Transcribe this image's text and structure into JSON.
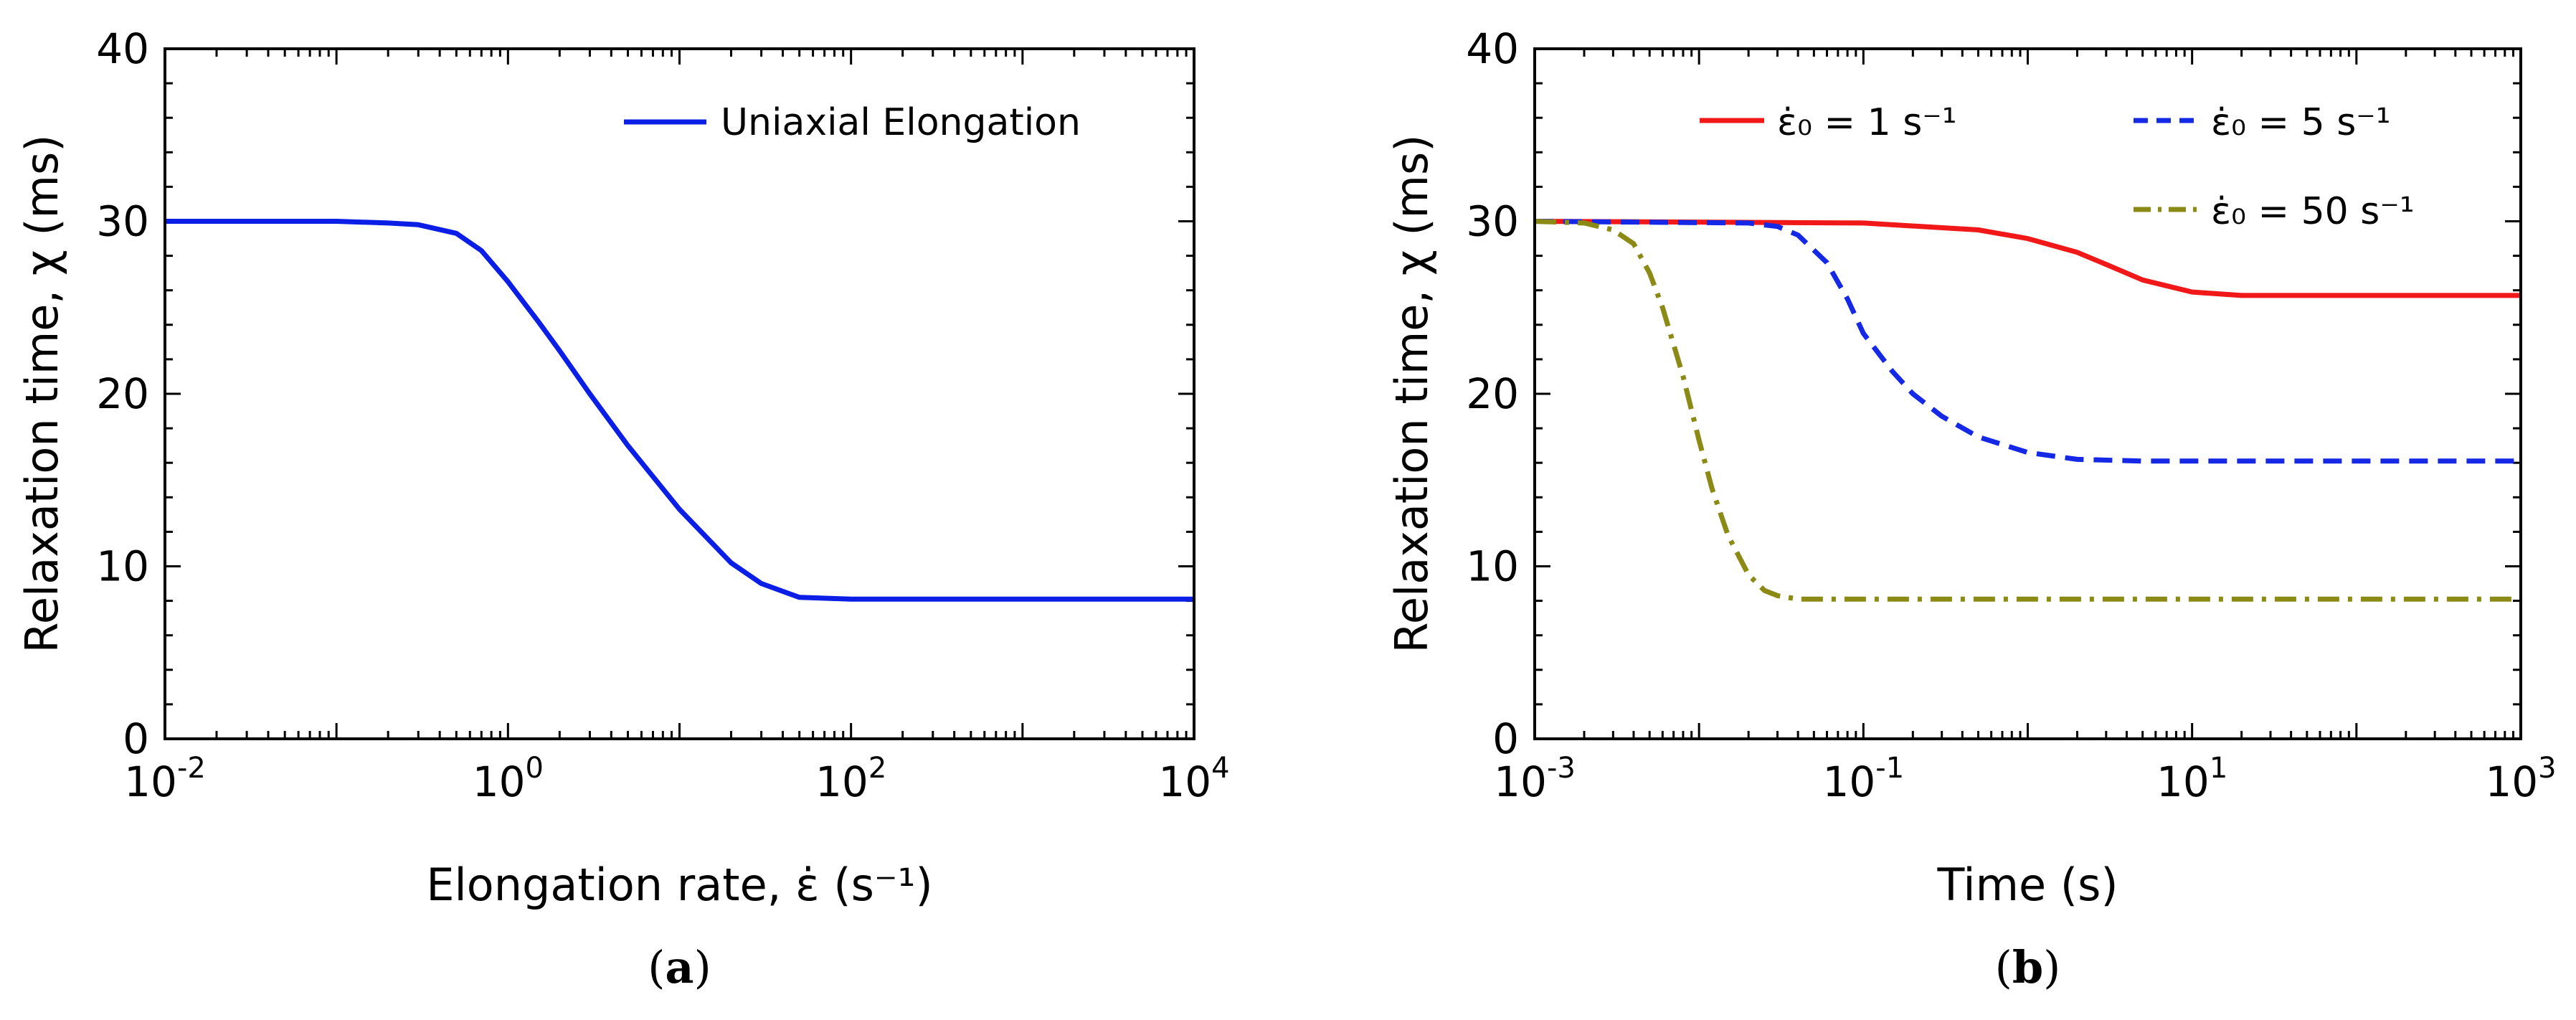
{
  "chart_data": [
    {
      "type": "line",
      "panel": "(a)",
      "panel_letter": "a",
      "xscale": "log",
      "xlim": [
        0.01,
        10000
      ],
      "ylim": [
        0,
        40
      ],
      "xticks_exp": [
        "-2",
        "0",
        "2",
        "4"
      ],
      "yticks": [
        "0",
        "10",
        "20",
        "30",
        "40"
      ],
      "tick_base": "10",
      "xlabel": "Elongation rate, ε̇ (s⁻¹)",
      "ylabel": "Relaxation time, χ (ms)",
      "legend_position": "top-right",
      "series": [
        {
          "name": "Uniaxial Elongation",
          "color": "#0a1ee6",
          "dash": "solid",
          "x": [
            0.01,
            0.1,
            0.2,
            0.3,
            0.5,
            0.7,
            1,
            1.5,
            2,
            3,
            5,
            10,
            20,
            30,
            50,
            100,
            1000,
            10000
          ],
          "y": [
            30,
            30,
            29.9,
            29.8,
            29.3,
            28.3,
            26.5,
            24.2,
            22.5,
            20,
            17,
            13.3,
            10.2,
            9,
            8.2,
            8.1,
            8.1,
            8.1
          ]
        }
      ]
    },
    {
      "type": "line",
      "panel": "(b)",
      "panel_letter": "b",
      "xscale": "log",
      "xlim": [
        0.001,
        1000
      ],
      "ylim": [
        0,
        40
      ],
      "xticks_exp": [
        "-3",
        "-1",
        "1",
        "3"
      ],
      "yticks": [
        "0",
        "10",
        "20",
        "30",
        "40"
      ],
      "tick_base": "10",
      "xlabel": "Time (s)",
      "ylabel": "Relaxation time, χ (ms)",
      "legend_position": "top",
      "series": [
        {
          "name": "ε̇₀ = 1 s⁻¹",
          "rate": "1",
          "color": "#f01818",
          "dash": "solid",
          "x": [
            0.001,
            0.1,
            0.5,
            1,
            2,
            3,
            5,
            10,
            20,
            50,
            1000
          ],
          "y": [
            30,
            29.9,
            29.5,
            29,
            28.2,
            27.5,
            26.6,
            25.9,
            25.7,
            25.7,
            25.7
          ]
        },
        {
          "name": "ε̇₀ = 5 s⁻¹",
          "rate": "5",
          "color": "#1428e6",
          "dash": "dashed",
          "x": [
            0.001,
            0.02,
            0.03,
            0.04,
            0.06,
            0.08,
            0.1,
            0.15,
            0.2,
            0.3,
            0.5,
            1,
            2,
            5,
            10,
            1000
          ],
          "y": [
            30,
            29.9,
            29.7,
            29.2,
            27.6,
            25.5,
            23.5,
            21.3,
            20,
            18.7,
            17.5,
            16.6,
            16.2,
            16.1,
            16.1,
            16.1
          ]
        },
        {
          "name": "ε̇₀ = 50 s⁻¹",
          "rate": "50",
          "color": "#8a8a14",
          "dash": "dashdot",
          "x": [
            0.001,
            0.002,
            0.003,
            0.004,
            0.005,
            0.006,
            0.008,
            0.01,
            0.012,
            0.015,
            0.02,
            0.025,
            0.03,
            0.04,
            0.05,
            1000
          ],
          "y": [
            30,
            29.9,
            29.5,
            28.7,
            27,
            25,
            21,
            17.3,
            14.5,
            11.8,
            9.5,
            8.6,
            8.3,
            8.1,
            8.1,
            8.1
          ]
        }
      ]
    }
  ]
}
